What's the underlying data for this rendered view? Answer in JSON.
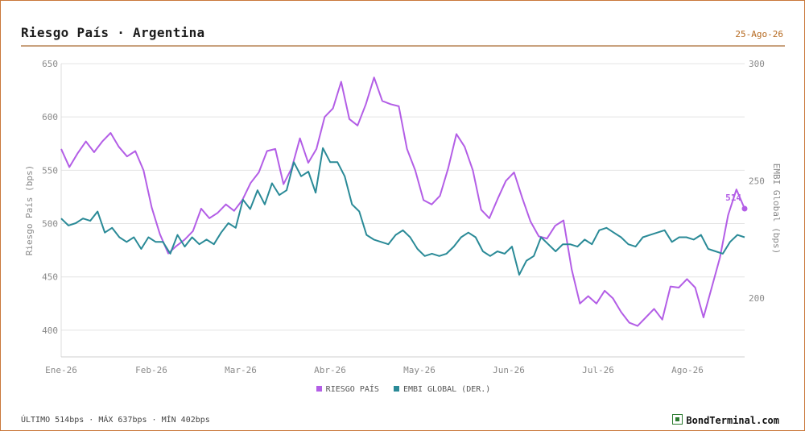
{
  "header": {
    "title": "Riesgo País · Argentina",
    "date": "25-Ago-26"
  },
  "footer": {
    "stats": "ÚLTIMO 514bps · MÁX 637bps · MÍN 402bps",
    "brand": "BondTerminal.com"
  },
  "colors": {
    "riesgo": "#b35ee6",
    "embi": "#2a8a97",
    "grid": "#e4e4e4",
    "accent": "#c9783a"
  },
  "chart_data": {
    "type": "line",
    "x_labels": [
      "Ene-26",
      "Feb-26",
      "Mar-26",
      "Abr-26",
      "May-26",
      "Jun-26",
      "Jul-26",
      "Ago-26"
    ],
    "left_axis": {
      "label": "Riesgo País (bps)",
      "ticks": [
        400,
        450,
        500,
        550,
        600,
        650
      ],
      "range": [
        375,
        650
      ]
    },
    "right_axis": {
      "label": "EMBI Global (bps)",
      "ticks": [
        200,
        250,
        300
      ],
      "range": [
        175,
        300
      ]
    },
    "last_label": "514",
    "series": [
      {
        "name": "RIESGO PAÍS",
        "axis": "left",
        "points": [
          [
            "Ene-26",
            570
          ],
          [
            "Ene-26+3",
            553
          ],
          [
            "Ene-26+6",
            566
          ],
          [
            "Ene-26+10",
            577
          ],
          [
            "Ene-26+14",
            567
          ],
          [
            "Ene-26+18",
            577
          ],
          [
            "Ene-26+22",
            585
          ],
          [
            "Ene-26+25",
            572
          ],
          [
            "Ene-26+28",
            563
          ],
          [
            "Ene-26+31",
            568
          ],
          [
            "Feb-26+4",
            550
          ],
          [
            "Feb-26+8",
            515
          ],
          [
            "Feb-26+11",
            490
          ],
          [
            "Feb-26+14",
            472
          ],
          [
            "Feb-26+17",
            479
          ],
          [
            "Feb-26+20",
            485
          ],
          [
            "Feb-26+24",
            493
          ],
          [
            "Feb-26+27",
            514
          ],
          [
            "Mar-26+1",
            505
          ],
          [
            "Mar-26+4",
            510
          ],
          [
            "Mar-26+8",
            518
          ],
          [
            "Mar-26+12",
            512
          ],
          [
            "Mar-26+15",
            522
          ],
          [
            "Mar-26+18",
            538
          ],
          [
            "Mar-26+21",
            548
          ],
          [
            "Mar-26+24",
            568
          ],
          [
            "Mar-26+27",
            570
          ],
          [
            "Mar-26+29",
            537
          ],
          [
            "Mar-26+31",
            552
          ],
          [
            "Abr-26+1",
            580
          ],
          [
            "Abr-26+3",
            557
          ],
          [
            "Abr-26+6",
            570
          ],
          [
            "Abr-26+9",
            600
          ],
          [
            "Abr-26+12",
            608
          ],
          [
            "Abr-26+14",
            633
          ],
          [
            "Abr-26+16",
            598
          ],
          [
            "Abr-26+19",
            592
          ],
          [
            "Abr-26+21",
            612
          ],
          [
            "Abr-26+23",
            637
          ],
          [
            "Abr-26+25",
            615
          ],
          [
            "Abr-26+28",
            612
          ],
          [
            "Abr-26+30",
            610
          ],
          [
            "May-26+1",
            570
          ],
          [
            "May-26+4",
            550
          ],
          [
            "May-26+7",
            522
          ],
          [
            "May-26+10",
            518
          ],
          [
            "May-26+13",
            526
          ],
          [
            "May-26+17",
            552
          ],
          [
            "May-26+20",
            584
          ],
          [
            "May-26+23",
            572
          ],
          [
            "May-26+26",
            550
          ],
          [
            "May-26+29",
            513
          ],
          [
            "Jun-26+1",
            505
          ],
          [
            "Jun-26+4",
            523
          ],
          [
            "Jun-26+7",
            540
          ],
          [
            "Jun-26+10",
            548
          ],
          [
            "Jun-26+13",
            524
          ],
          [
            "Jun-26+17",
            502
          ],
          [
            "Jun-26+21",
            488
          ],
          [
            "Jun-26+25",
            486
          ],
          [
            "Jun-26+28",
            498
          ],
          [
            "Jun-26+30",
            503
          ],
          [
            "Jul-26+1",
            457
          ],
          [
            "Jul-26+4",
            425
          ],
          [
            "Jul-26+7",
            432
          ],
          [
            "Jul-26+10",
            425
          ],
          [
            "Jul-26+13",
            437
          ],
          [
            "Jul-26+17",
            430
          ],
          [
            "Jul-26+20",
            417
          ],
          [
            "Jul-26+23",
            407
          ],
          [
            "Jul-26+26",
            404
          ],
          [
            "Jul-26+28",
            412
          ],
          [
            "Jul-26+30",
            420
          ],
          [
            "Jul-26+31",
            410
          ],
          [
            "Ago-26+1",
            441
          ],
          [
            "Ago-26+4",
            440
          ],
          [
            "Ago-26+7",
            448
          ],
          [
            "Ago-26+10",
            440
          ],
          [
            "Ago-26+13",
            412
          ],
          [
            "Ago-26+16",
            440
          ],
          [
            "Ago-26+19",
            468
          ],
          [
            "Ago-26+22",
            508
          ],
          [
            "Ago-26+24",
            532
          ],
          [
            "Ago-26+25",
            514
          ]
        ],
        "values": [
          570,
          553,
          566,
          577,
          567,
          577,
          585,
          572,
          563,
          568,
          550,
          515,
          490,
          472,
          479,
          485,
          493,
          514,
          505,
          510,
          518,
          512,
          522,
          538,
          548,
          568,
          570,
          537,
          552,
          580,
          557,
          570,
          600,
          608,
          633,
          598,
          592,
          612,
          637,
          615,
          612,
          610,
          570,
          550,
          522,
          518,
          526,
          552,
          584,
          572,
          550,
          513,
          505,
          523,
          540,
          548,
          524,
          502,
          488,
          486,
          498,
          503,
          457,
          425,
          432,
          425,
          437,
          430,
          417,
          407,
          404,
          412,
          420,
          410,
          441,
          440,
          448,
          440,
          412,
          440,
          468,
          508,
          532,
          514
        ]
      },
      {
        "name": "EMBI GLOBAL (DER.)",
        "axis": "right",
        "values": [
          234,
          231,
          232,
          234,
          233,
          237,
          228,
          230,
          226,
          224,
          226,
          221,
          226,
          224,
          224,
          219,
          227,
          222,
          226,
          223,
          225,
          223,
          228,
          232,
          230,
          242,
          238,
          246,
          240,
          249,
          244,
          246,
          258,
          252,
          254,
          245,
          264,
          258,
          258,
          252,
          240,
          237,
          227,
          225,
          224,
          223,
          227,
          229,
          226,
          221,
          218,
          219,
          218,
          219,
          222,
          226,
          228,
          226,
          220,
          218,
          220,
          219,
          222,
          210,
          216,
          218,
          226,
          223,
          220,
          223,
          223,
          222,
          225,
          223,
          229,
          230,
          228,
          226,
          223,
          222,
          226,
          227,
          228,
          229,
          224,
          226,
          226,
          225,
          227,
          221,
          220,
          219,
          224,
          227,
          226
        ]
      }
    ]
  }
}
